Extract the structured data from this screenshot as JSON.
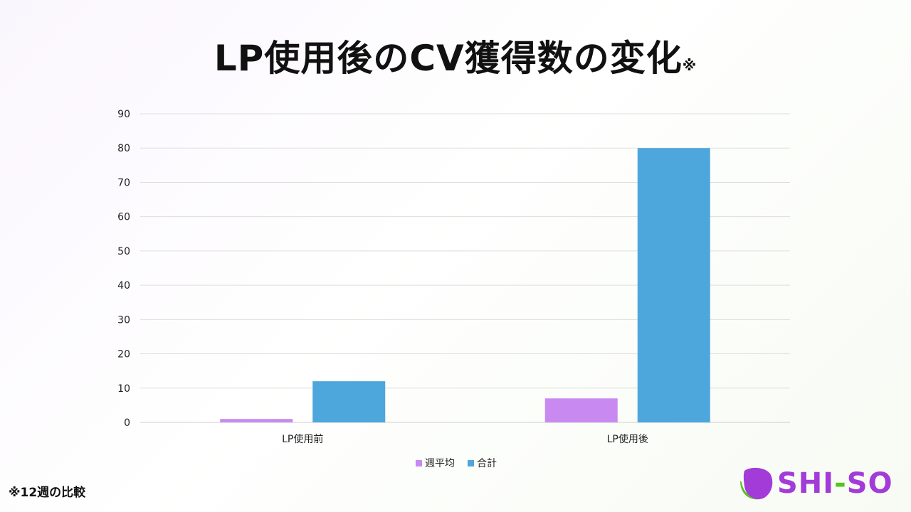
{
  "title": "LP使用後のCV獲得数の変化",
  "title_mark": "※",
  "footnote": "※12週の比較",
  "logo": {
    "part1": "SHI",
    "dash": "-",
    "part2": "SO"
  },
  "colors": {
    "series1": "#c88af0",
    "series2": "#4da6dc",
    "brand_purple": "#a23bd8",
    "brand_green": "#58c322"
  },
  "chart_data": {
    "type": "bar",
    "categories": [
      "LP使用前",
      "LP使用後"
    ],
    "series": [
      {
        "name": "週平均",
        "values": [
          1,
          7
        ]
      },
      {
        "name": "合計",
        "values": [
          12,
          80
        ]
      }
    ],
    "ylim": [
      0,
      90
    ],
    "yticks": [
      "0",
      "10",
      "20",
      "30",
      "40",
      "50",
      "60",
      "70",
      "80",
      "90"
    ],
    "grid": true,
    "legend": "bottom"
  }
}
